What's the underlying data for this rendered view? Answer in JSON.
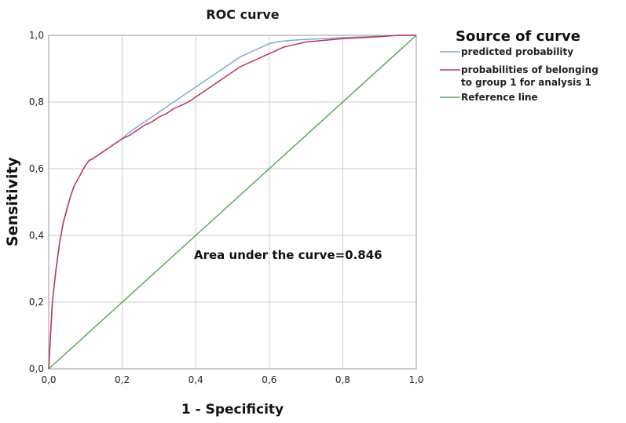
{
  "chart_data": {
    "type": "line",
    "title": "ROC curve",
    "xlabel": "1 - Specificity",
    "ylabel": "Sensitivity",
    "xlim": [
      0,
      1
    ],
    "ylim": [
      0,
      1
    ],
    "x_ticks": [
      "0,0",
      "0,2",
      "0,4",
      "0,6",
      "0,8",
      "1,0"
    ],
    "y_ticks": [
      "0,0",
      "0,2",
      "0,4",
      "0,6",
      "0,8",
      "1,0"
    ],
    "grid": true,
    "legend_title": "Source of curve",
    "legend_position": "right",
    "annotation": "Area under the curve=0.846",
    "series": [
      {
        "name": "predicted probability",
        "color": "#7fa8d8",
        "x": [
          0,
          0.005,
          0.01,
          0.02,
          0.03,
          0.04,
          0.05,
          0.06,
          0.07,
          0.08,
          0.09,
          0.1,
          0.11,
          0.12,
          0.14,
          0.16,
          0.18,
          0.2,
          0.22,
          0.24,
          0.26,
          0.28,
          0.3,
          0.32,
          0.34,
          0.36,
          0.38,
          0.4,
          0.42,
          0.44,
          0.46,
          0.48,
          0.5,
          0.52,
          0.54,
          0.56,
          0.58,
          0.6,
          0.62,
          0.64,
          0.66,
          0.7,
          0.75,
          0.8,
          0.85,
          0.9,
          0.95,
          1.0
        ],
        "y": [
          0,
          0.1,
          0.2,
          0.3,
          0.38,
          0.44,
          0.48,
          0.52,
          0.55,
          0.57,
          0.59,
          0.61,
          0.625,
          0.63,
          0.645,
          0.66,
          0.675,
          0.69,
          0.71,
          0.725,
          0.74,
          0.755,
          0.77,
          0.785,
          0.8,
          0.815,
          0.83,
          0.845,
          0.86,
          0.875,
          0.89,
          0.905,
          0.92,
          0.935,
          0.945,
          0.955,
          0.965,
          0.975,
          0.98,
          0.983,
          0.985,
          0.988,
          0.99,
          0.993,
          0.995,
          0.997,
          1.0,
          1.0
        ]
      },
      {
        "name": "probabilities of belonging to group 1 for analysis 1",
        "legend_lines": [
          "probabilities of belonging",
          "to group 1 for analysis 1"
        ],
        "color": "#c0325f",
        "x": [
          0,
          0.005,
          0.01,
          0.02,
          0.03,
          0.04,
          0.05,
          0.06,
          0.07,
          0.08,
          0.09,
          0.1,
          0.11,
          0.12,
          0.14,
          0.16,
          0.18,
          0.2,
          0.22,
          0.24,
          0.26,
          0.28,
          0.3,
          0.32,
          0.34,
          0.36,
          0.38,
          0.4,
          0.42,
          0.44,
          0.46,
          0.48,
          0.5,
          0.52,
          0.54,
          0.56,
          0.58,
          0.6,
          0.62,
          0.64,
          0.66,
          0.7,
          0.75,
          0.8,
          0.85,
          0.9,
          0.95,
          1.0
        ],
        "y": [
          0,
          0.1,
          0.2,
          0.3,
          0.38,
          0.44,
          0.48,
          0.52,
          0.55,
          0.57,
          0.59,
          0.61,
          0.625,
          0.63,
          0.645,
          0.66,
          0.675,
          0.69,
          0.7,
          0.715,
          0.73,
          0.74,
          0.755,
          0.765,
          0.78,
          0.79,
          0.8,
          0.815,
          0.83,
          0.845,
          0.86,
          0.875,
          0.89,
          0.905,
          0.915,
          0.925,
          0.935,
          0.945,
          0.955,
          0.965,
          0.97,
          0.98,
          0.985,
          0.99,
          0.993,
          0.996,
          1.0,
          1.0
        ]
      },
      {
        "name": "Reference line",
        "color": "#5aaa5a",
        "x": [
          0,
          1
        ],
        "y": [
          0,
          1
        ]
      }
    ]
  }
}
